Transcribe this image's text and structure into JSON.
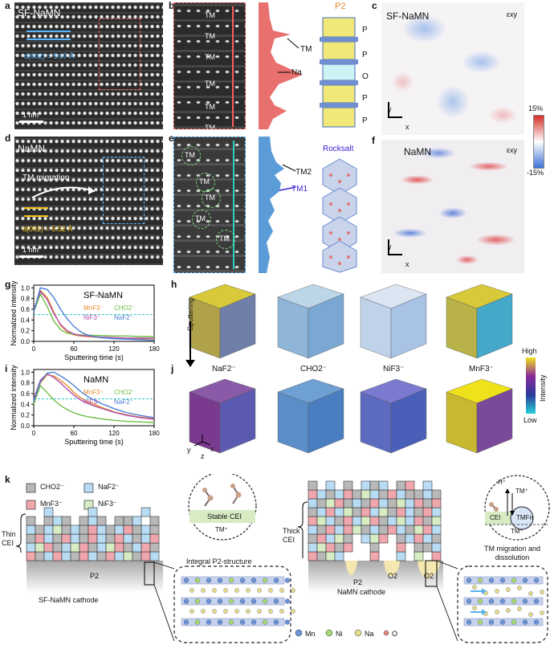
{
  "panel_labels": {
    "a": "a",
    "b": "b",
    "c": "c",
    "d": "d",
    "e": "e",
    "f": "f",
    "g": "g",
    "h": "h",
    "i": "i",
    "j": "j",
    "k": "k"
  },
  "panel_a": {
    "title": "SF-NaMN",
    "spacing": "d(002) = 5.67 Å",
    "scale": "1 nm"
  },
  "panel_b": {
    "atom_labels": [
      "TM",
      "TM",
      "TM",
      "TM",
      "TM",
      "TM"
    ],
    "profile_tm": "TM",
    "profile_na": "Na",
    "struct_title": "P2",
    "stacking": [
      "P",
      "P",
      "O",
      "P",
      "P"
    ]
  },
  "panel_c": {
    "title": "SF-NaMN",
    "strain": "εxy",
    "axis_y": "y",
    "axis_x": "x",
    "colorbar_max": "15%",
    "colorbar_min": "-15%"
  },
  "panel_d": {
    "title": "NaMN",
    "migration": "TM migration",
    "spacing": "d(002) = 5.52 Å",
    "scale": "1 nm"
  },
  "panel_e": {
    "atom_labels": [
      "TM",
      "TM",
      "TM",
      "TM",
      "TM"
    ],
    "profile_tm2": "TM2",
    "profile_tm1": "TM1",
    "struct_title": "Rocksalt"
  },
  "panel_f": {
    "title": "NaMN",
    "strain": "εxy",
    "axis_y": "y",
    "axis_x": "x"
  },
  "panel_g": {
    "title": "SF-NaMN",
    "legend": {
      "mnf3": "MnF3⁻",
      "cho2": "CHO2⁻",
      "nif3": "NiF3⁻",
      "naf2": "NaF2⁻"
    },
    "ylabel": "Normalized intensity",
    "xlabel": "Sputtering time (s)",
    "xticks": [
      "0",
      "60",
      "120",
      "180"
    ],
    "yticks": [
      "0.0",
      "0.2",
      "0.4",
      "0.6",
      "0.8",
      "1.0"
    ]
  },
  "panel_i": {
    "title": "NaMN",
    "legend": {
      "mnf3": "MnF3⁻",
      "cho2": "CHO2⁻",
      "nif3": "NiF3⁻",
      "naf2": "NaF2⁻"
    },
    "ylabel": "Normalized intensity",
    "xlabel": "Sputtering time (s)",
    "xticks": [
      "0",
      "60",
      "120",
      "180"
    ],
    "yticks": [
      "0.0",
      "0.2",
      "0.4",
      "0.6",
      "0.8",
      "1.0"
    ]
  },
  "panel_hj": {
    "species": [
      "NaF2⁻",
      "CHO2⁻",
      "NiF3⁻",
      "MnF3⁻"
    ],
    "sputtering": "Sputtering",
    "high": "High",
    "low": "Low",
    "intensity": "Intensity",
    "axes": {
      "y": "y",
      "z": "z",
      "x": "x"
    }
  },
  "panel_k": {
    "legend": {
      "cho2": "CHO2⁻",
      "naf2": "NaF2⁻",
      "mnf3": "MnF3⁻",
      "nif3": "NiF3⁻"
    },
    "left": {
      "cei": "Thin CEI",
      "phase": "P2",
      "cathode": "SF-NaMN cathode",
      "integral": "Integral P2-structure",
      "stable": "Stable CEI",
      "tm": "TM⁺"
    },
    "right": {
      "cei": "Thick CEI",
      "phase": "P2",
      "o2a": "O2",
      "o2b": "O2",
      "cathode": "NaMN cathode",
      "migration": "TM migration and dissolution",
      "hplus": "H⁺",
      "tm_top": "TM⁺",
      "tm_bottom": "TM⁺",
      "tmn": "TMFn",
      "cei_small": "CEI"
    },
    "atoms": [
      "Mn",
      "Ni",
      "Na",
      "O"
    ]
  },
  "colors": {
    "red_profile": "#e8706f",
    "blue_profile": "#5b9bd8",
    "orange": "#e88a2a",
    "green": "#6fbf45",
    "purple": "#b34fb0",
    "blue": "#4a7fd4",
    "cyan": "#28c8c8"
  },
  "chart_data": [
    {
      "type": "line",
      "title": "SF-NaMN",
      "xlabel": "Sputtering time (s)",
      "ylabel": "Normalized intensity",
      "xlim": [
        0,
        180
      ],
      "ylim": [
        0,
        1.05
      ],
      "threshold": 0.5,
      "x": [
        0,
        10,
        20,
        30,
        40,
        50,
        60,
        70,
        80,
        90,
        100,
        120,
        140,
        160,
        180
      ],
      "series": [
        {
          "name": "MnF3⁻",
          "color": "#e88a2a",
          "values": [
            0.55,
            0.95,
            0.82,
            0.55,
            0.3,
            0.18,
            0.12,
            0.1,
            0.09,
            0.08,
            0.07,
            0.06,
            0.05,
            0.05,
            0.05
          ]
        },
        {
          "name": "CHO2⁻",
          "color": "#6fbf45",
          "values": [
            0.55,
            0.88,
            0.65,
            0.38,
            0.22,
            0.15,
            0.13,
            0.12,
            0.12,
            0.11,
            0.11,
            0.1,
            0.1,
            0.09,
            0.09
          ]
        },
        {
          "name": "NiF3⁻",
          "color": "#b34fb0",
          "values": [
            0.6,
            0.93,
            0.78,
            0.52,
            0.32,
            0.2,
            0.14,
            0.11,
            0.1,
            0.09,
            0.08,
            0.07,
            0.06,
            0.06,
            0.06
          ]
        },
        {
          "name": "NaF2⁻",
          "color": "#4a7fd4",
          "values": [
            0.55,
            1.0,
            0.97,
            0.82,
            0.6,
            0.42,
            0.28,
            0.18,
            0.12,
            0.09,
            0.07,
            0.05,
            0.04,
            0.03,
            0.02
          ]
        }
      ]
    },
    {
      "type": "line",
      "title": "NaMN",
      "xlabel": "Sputtering time (s)",
      "ylabel": "Normalized intensity",
      "xlim": [
        0,
        180
      ],
      "ylim": [
        0,
        1.05
      ],
      "threshold": 0.5,
      "x": [
        0,
        10,
        20,
        30,
        40,
        50,
        60,
        70,
        80,
        90,
        100,
        120,
        140,
        160,
        180
      ],
      "series": [
        {
          "name": "MnF3⁻",
          "color": "#e88a2a",
          "values": [
            0.45,
            0.8,
            0.95,
            0.93,
            0.85,
            0.75,
            0.62,
            0.52,
            0.45,
            0.4,
            0.35,
            0.26,
            0.2,
            0.16,
            0.13
          ]
        },
        {
          "name": "CHO2⁻",
          "color": "#6fbf45",
          "values": [
            0.4,
            0.75,
            0.62,
            0.48,
            0.38,
            0.3,
            0.24,
            0.2,
            0.17,
            0.15,
            0.13,
            0.1,
            0.08,
            0.07,
            0.06
          ]
        },
        {
          "name": "NiF3⁻",
          "color": "#b34fb0",
          "values": [
            0.5,
            0.85,
            0.97,
            0.9,
            0.8,
            0.68,
            0.57,
            0.48,
            0.42,
            0.37,
            0.33,
            0.25,
            0.19,
            0.15,
            0.12
          ]
        },
        {
          "name": "NaF2⁻",
          "color": "#4a7fd4",
          "values": [
            0.45,
            0.82,
            0.98,
            1.0,
            0.93,
            0.85,
            0.75,
            0.64,
            0.55,
            0.48,
            0.42,
            0.32,
            0.24,
            0.19,
            0.15
          ]
        }
      ]
    }
  ]
}
